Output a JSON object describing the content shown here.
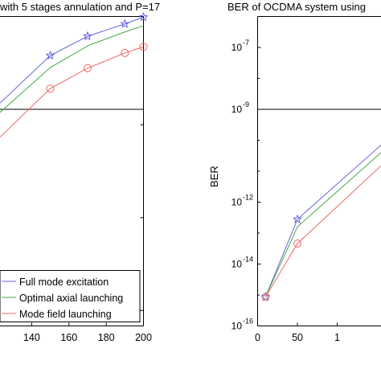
{
  "chart_data": [
    {
      "type": "line",
      "title": "with 5 stages annulation and P=17",
      "xlabel": "",
      "ylabel": "",
      "x_tick_labels": [
        "140",
        "160",
        "180",
        "200"
      ],
      "xlim": [
        123,
        200
      ],
      "ylim": [
        0,
        1
      ],
      "grid": false,
      "legend_placement": "bottom-right",
      "series": [
        {
          "name": "Full mode excitation",
          "color": "#6666dd",
          "marker": "star",
          "x": [
            123,
            150,
            170,
            190,
            200
          ],
          "y": [
            0.72,
            0.874,
            0.936,
            0.976,
            0.998
          ]
        },
        {
          "name": "Optimal axial launching",
          "color": "#44aa44",
          "marker": "none",
          "x": [
            123,
            150,
            170,
            190,
            200
          ],
          "y": [
            0.69,
            0.835,
            0.905,
            0.95,
            0.97
          ]
        },
        {
          "name": "Mode field launching",
          "color": "#ee6666",
          "marker": "circle",
          "x": [
            123,
            150,
            170,
            190,
            200
          ],
          "y": [
            0.61,
            0.767,
            0.833,
            0.882,
            0.902
          ]
        }
      ]
    },
    {
      "type": "line",
      "title": "BER of OCDMA system using",
      "xlabel": "",
      "ylabel": "BER",
      "y_scale": "log",
      "y_tick_labels": [
        {
          "base": "10",
          "exp": "-7"
        },
        {
          "base": "10",
          "exp": "-9"
        },
        {
          "base": "10",
          "exp": "-12"
        },
        {
          "base": "10",
          "exp": "-14"
        },
        {
          "base": "10",
          "exp": "-16"
        }
      ],
      "x_tick_labels": [
        "0",
        "50",
        "1"
      ],
      "xlim": [
        0,
        155
      ],
      "ylim": [
        1e-16,
        1e-06
      ],
      "grid": false,
      "series": [
        {
          "name": "Full mode excitation",
          "color": "#6666dd",
          "marker": "star",
          "x": [
            10,
            50,
            155
          ],
          "y": [
            8.7e-16,
            2.8e-13,
            7e-11
          ]
        },
        {
          "name": "Optimal axial launching",
          "color": "#44aa44",
          "marker": "none",
          "x": [
            10,
            50,
            155
          ],
          "y": [
            8.7e-16,
            1.6e-13,
            4e-11
          ]
        },
        {
          "name": "Mode field launching",
          "color": "#ee6666",
          "marker": "circle",
          "x": [
            10,
            50,
            155
          ],
          "y": [
            8.7e-16,
            4.6e-14,
            1.5e-11
          ]
        }
      ]
    }
  ]
}
